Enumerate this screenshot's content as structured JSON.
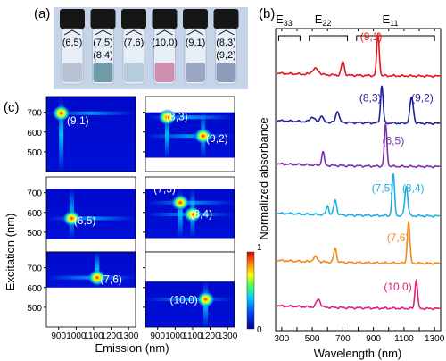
{
  "panel_labels": {
    "a": "(a)",
    "b": "(b)",
    "c": "(c)"
  },
  "vials": {
    "top_labels": [
      "(6,5)",
      "(7,5)",
      "(7,6)",
      "(10,0)",
      "(9,1)",
      "(8,3)"
    ],
    "bottom_labels": [
      "",
      "(8,4)",
      "",
      "",
      "",
      "(9,2)"
    ],
    "colors": [
      "#b9c3d4",
      "#6f9aa7",
      "#b8cddb",
      "#cf8fae",
      "#9aa6c2",
      "#8e9cbc"
    ]
  },
  "chart_data": [
    {
      "type": "line",
      "panel": "(b)",
      "xlabel": "Wavelength (nm)",
      "ylabel": "Normalized absorbance",
      "xlim": [
        260,
        1340
      ],
      "xticks": [
        300,
        400,
        500,
        600,
        700,
        800,
        900,
        1000,
        1100,
        1200,
        1300
      ],
      "xtick_labels": [
        "300",
        "",
        "500",
        "",
        "700",
        "",
        "900",
        "",
        "1100",
        "",
        "1300"
      ],
      "regions": [
        {
          "label": "E33",
          "main": "E",
          "sub": "33",
          "range": [
            280,
            420
          ]
        },
        {
          "label": "E22",
          "main": "E",
          "sub": "22",
          "range": [
            480,
            730
          ]
        },
        {
          "label": "E11",
          "main": "E",
          "sub": "11",
          "range": [
            790,
            1300
          ]
        }
      ],
      "series": [
        {
          "name": "(9,1)",
          "color": "#e3141c",
          "offset": 6.0,
          "labels": [
            {
              "text": "(9,1)",
              "x": 885,
              "y": 0.88
            }
          ],
          "peaks": [
            [
              930,
              1.0,
              12
            ],
            [
              700,
              0.32,
              14
            ],
            [
              520,
              0.14,
              30
            ]
          ]
        },
        {
          "name": "(8,3)/(9,2)",
          "color": "#1f1f9a",
          "offset": 4.85,
          "labels": [
            {
              "text": "(8,3)",
              "x": 880,
              "y": 0.55
            },
            {
              "text": "(9,2)",
              "x": 1220,
              "y": 0.55
            }
          ],
          "peaks": [
            [
              955,
              0.9,
              12
            ],
            [
              1150,
              0.62,
              16
            ],
            [
              665,
              0.28,
              15
            ],
            [
              560,
              0.16,
              14
            ],
            [
              500,
              0.12,
              20
            ]
          ]
        },
        {
          "name": "(6,5)",
          "color": "#7b2fb0",
          "offset": 3.8,
          "labels": [
            {
              "text": "(6,5)",
              "x": 1030,
              "y": 0.55
            }
          ],
          "peaks": [
            [
              980,
              1.0,
              12
            ],
            [
              570,
              0.32,
              12
            ]
          ]
        },
        {
          "name": "(7,5)/(8,4)",
          "color": "#22aee0",
          "offset": 2.6,
          "labels": [
            {
              "text": "(7,5)",
              "x": 960,
              "y": 0.6
            },
            {
              "text": "(8,4)",
              "x": 1160,
              "y": 0.6
            }
          ],
          "peaks": [
            [
              1030,
              1.0,
              12
            ],
            [
              1115,
              0.72,
              14
            ],
            [
              650,
              0.36,
              14
            ],
            [
              600,
              0.22,
              12
            ]
          ]
        },
        {
          "name": "(7,6)",
          "color": "#f08a1c",
          "offset": 1.45,
          "labels": [
            {
              "text": "(7,6)",
              "x": 1060,
              "y": 0.55
            }
          ],
          "peaks": [
            [
              1130,
              1.0,
              12
            ],
            [
              650,
              0.34,
              13
            ],
            [
              520,
              0.12,
              20
            ]
          ]
        },
        {
          "name": "(10,0)",
          "color": "#e0207a",
          "offset": 0.35,
          "labels": [
            {
              "text": "(10,0)",
              "x": 1060,
              "y": 0.45
            }
          ],
          "peaks": [
            [
              1180,
              0.7,
              12
            ],
            [
              540,
              0.2,
              18
            ]
          ]
        }
      ]
    },
    {
      "type": "heatmap",
      "panel": "(c)",
      "xlabel": "Emission (nm)",
      "ylabel": "Excitation (nm)",
      "xlim": [
        830,
        1340
      ],
      "ylim": [
        400,
        780
      ],
      "xticks": [
        900,
        1000,
        1100,
        1200,
        1300
      ],
      "yticks": [
        500,
        600,
        700
      ],
      "colorbar": {
        "min": "0",
        "max": "1",
        "colors": [
          "#ffffff",
          "#0000c8",
          "#0050ff",
          "#00c8ff",
          "#40ff60",
          "#ffff00",
          "#ff8000",
          "#e00000"
        ]
      },
      "maps": [
        {
          "label": "(9,1)",
          "spots": [
            [
              915,
              695
            ]
          ],
          "data_range": [
            400,
            780
          ],
          "label_pos": [
            1010,
            640
          ]
        },
        {
          "label": "",
          "labels": [
            {
              "text": "(8,3)",
              "x": 1010,
              "y": 660
            },
            {
              "text": "(9,2)",
              "x": 1240,
              "y": 550
            }
          ],
          "spots": [
            [
              955,
              675
            ],
            [
              1160,
              580
            ]
          ],
          "data_range": [
            470,
            700
          ]
        },
        {
          "label": "(6,5)",
          "spots": [
            [
              975,
              570
            ]
          ],
          "data_range": [
            465,
            720
          ],
          "label_pos": [
            1050,
            540
          ]
        },
        {
          "label": "",
          "labels": [
            {
              "text": "(7,5)",
              "x": 940,
              "y": 700
            },
            {
              "text": "(8,4)",
              "x": 1150,
              "y": 575
            }
          ],
          "spots": [
            [
              1030,
              650
            ],
            [
              1100,
              590
            ]
          ],
          "data_range": [
            470,
            720
          ]
        },
        {
          "label": "(7,6)",
          "spots": [
            [
              1120,
              650
            ]
          ],
          "data_range": [
            600,
            780
          ],
          "label_pos": [
            1200,
            625
          ]
        },
        {
          "label": "(10,0)",
          "spots": [
            [
              1175,
              540
            ]
          ],
          "data_range": [
            400,
            630
          ],
          "label_pos": [
            1050,
            520
          ]
        }
      ]
    }
  ]
}
